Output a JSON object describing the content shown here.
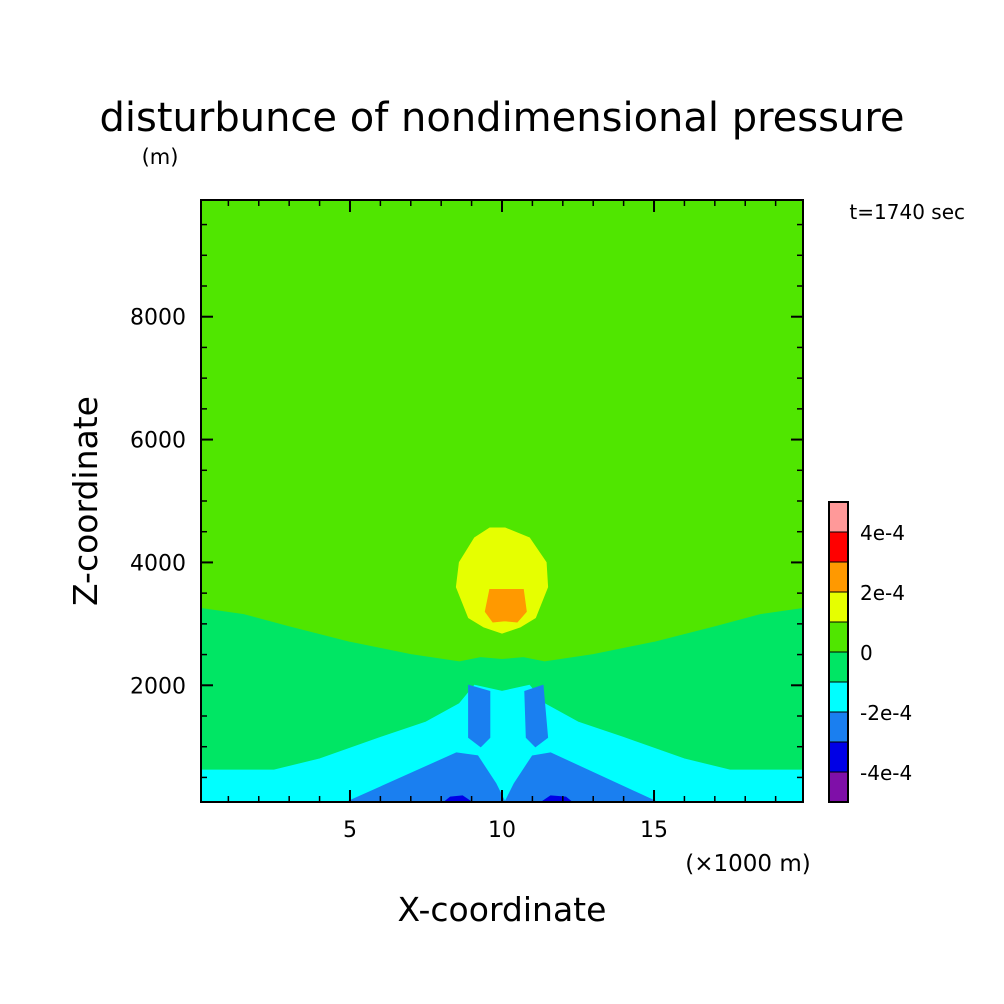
{
  "chart_data": {
    "type": "heatmap",
    "subtype": "filled-contour",
    "title": "disturbunce of nondimensional pressure",
    "units_label": "(m)",
    "time_label": "t=1740 sec",
    "xlabel": "X-coordinate",
    "xunit_label": "(×1000 m)",
    "ylabel": "Z-coordinate",
    "xlim": [
      0.1,
      19.9
    ],
    "ylim": [
      100,
      9900
    ],
    "x_ticks": [
      5,
      10,
      15
    ],
    "x_tick_labels": [
      "5",
      "10",
      "15"
    ],
    "y_ticks": [
      2000,
      4000,
      6000,
      8000
    ],
    "y_tick_labels": [
      "2000",
      "4000",
      "6000",
      "8000"
    ],
    "colorbar": {
      "levels": [
        -0.0005,
        -0.0004,
        -0.0003,
        -0.0002,
        -0.0001,
        0,
        0.0001,
        0.0002,
        0.0003,
        0.0004,
        0.0005
      ],
      "colors": [
        "#7f0fa8",
        "#0000e6",
        "#1a7ff0",
        "#00ffff",
        "#00e664",
        "#50e600",
        "#e6ff00",
        "#ff9900",
        "#ff0000",
        "#ff9999"
      ],
      "tick_values": [
        -0.0004,
        -0.0002,
        0,
        0.0002,
        0.0004
      ],
      "tick_labels": [
        "-4e-4",
        "-2e-4",
        "0",
        "2e-4",
        "4e-4"
      ]
    },
    "regions": [
      {
        "level": "0 to 1e-4",
        "color": "#50e600",
        "outline": [
          [
            0.1,
            3250
          ],
          [
            1.5,
            3150
          ],
          [
            3,
            2950
          ],
          [
            5,
            2700
          ],
          [
            7,
            2500
          ],
          [
            8.6,
            2380
          ],
          [
            9.3,
            2450
          ],
          [
            10,
            2420
          ],
          [
            10.7,
            2450
          ],
          [
            11.4,
            2380
          ],
          [
            13,
            2500
          ],
          [
            15,
            2700
          ],
          [
            17,
            2950
          ],
          [
            18.5,
            3150
          ],
          [
            19.9,
            3250
          ],
          [
            19.9,
            9900
          ],
          [
            0.1,
            9900
          ]
        ]
      },
      {
        "level": "1e-4 to 2e-4",
        "color": "#e6ff00",
        "outline": [
          [
            10.1,
            4560
          ],
          [
            10.9,
            4400
          ],
          [
            11.45,
            4000
          ],
          [
            11.5,
            3600
          ],
          [
            11.1,
            3100
          ],
          [
            10.6,
            2950
          ],
          [
            10,
            2850
          ],
          [
            9.4,
            2950
          ],
          [
            8.9,
            3100
          ],
          [
            8.5,
            3600
          ],
          [
            8.6,
            4000
          ],
          [
            9.1,
            4400
          ],
          [
            9.6,
            4560
          ]
        ]
      },
      {
        "level": "2e-4 to 3e-4",
        "color": "#ff9900",
        "outline": [
          [
            9.6,
            3560
          ],
          [
            10.7,
            3560
          ],
          [
            10.8,
            3200
          ],
          [
            10.5,
            3030
          ],
          [
            10.1,
            3050
          ],
          [
            9.7,
            3030
          ],
          [
            9.45,
            3200
          ]
        ]
      },
      {
        "level": "-1e-4 to 0",
        "color": "#00e664",
        "outline": [
          [
            0.1,
            620
          ],
          [
            2.5,
            620
          ],
          [
            4,
            800
          ],
          [
            6,
            1150
          ],
          [
            7.5,
            1400
          ],
          [
            8.6,
            1700
          ],
          [
            9.1,
            2000
          ],
          [
            10,
            1900
          ],
          [
            10.9,
            2000
          ],
          [
            11.4,
            1700
          ],
          [
            12.5,
            1400
          ],
          [
            14,
            1150
          ],
          [
            16,
            800
          ],
          [
            17.5,
            620
          ],
          [
            19.9,
            620
          ],
          [
            19.9,
            3250
          ],
          [
            18.5,
            3150
          ],
          [
            17,
            2950
          ],
          [
            15,
            2700
          ],
          [
            13,
            2500
          ],
          [
            11.4,
            2380
          ],
          [
            10.7,
            2450
          ],
          [
            10,
            2420
          ],
          [
            9.3,
            2450
          ],
          [
            8.6,
            2380
          ],
          [
            7,
            2500
          ],
          [
            5,
            2700
          ],
          [
            3,
            2950
          ],
          [
            1.5,
            3150
          ],
          [
            0.1,
            3250
          ]
        ]
      },
      {
        "level": "-2e-4 to -1e-4",
        "color": "#00ffff",
        "outline": [
          [
            0.1,
            100
          ],
          [
            0.1,
            620
          ],
          [
            2.5,
            620
          ],
          [
            4,
            800
          ],
          [
            6,
            1150
          ],
          [
            7.5,
            1400
          ],
          [
            8.6,
            1700
          ],
          [
            9.1,
            2000
          ],
          [
            10,
            1900
          ],
          [
            10.9,
            2000
          ],
          [
            11.4,
            1700
          ],
          [
            12.5,
            1400
          ],
          [
            14,
            1150
          ],
          [
            16,
            800
          ],
          [
            17.5,
            620
          ],
          [
            19.9,
            620
          ],
          [
            19.9,
            100
          ]
        ]
      },
      {
        "level": "-3e-4 to -2e-4",
        "color": "#1a7ff0",
        "outline": [
          [
            4.9,
            100
          ],
          [
            8.5,
            900
          ],
          [
            9.2,
            850
          ],
          [
            9.8,
            400
          ],
          [
            10.1,
            100
          ],
          [
            10.4,
            400
          ],
          [
            11.0,
            850
          ],
          [
            11.6,
            900
          ],
          [
            15.1,
            100
          ]
        ]
      },
      {
        "level": "-3e-4 to -2e-4",
        "color": "#1a7ff0",
        "outline": [
          [
            8.9,
            2000
          ],
          [
            8.9,
            1150
          ],
          [
            9.3,
            1000
          ],
          [
            9.6,
            1150
          ],
          [
            9.6,
            1900
          ]
        ]
      },
      {
        "level": "-3e-4 to -2e-4",
        "color": "#1a7ff0",
        "outline": [
          [
            10.75,
            1900
          ],
          [
            10.8,
            1150
          ],
          [
            11.1,
            1000
          ],
          [
            11.5,
            1150
          ],
          [
            11.35,
            2000
          ]
        ]
      },
      {
        "level": "-4e-4 to -3e-4",
        "color": "#0000e6",
        "outline": [
          [
            8.1,
            100
          ],
          [
            8.3,
            180
          ],
          [
            8.7,
            200
          ],
          [
            9.0,
            100
          ]
        ]
      },
      {
        "level": "-4e-4 to -3e-4",
        "color": "#0000e6",
        "outline": [
          [
            11.3,
            100
          ],
          [
            11.6,
            200
          ],
          [
            12.1,
            180
          ],
          [
            12.3,
            100
          ]
        ]
      }
    ]
  }
}
